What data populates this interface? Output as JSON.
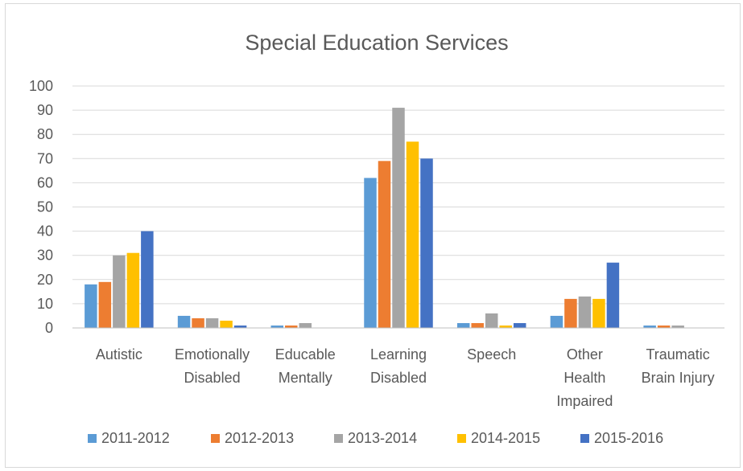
{
  "chart_data": {
    "type": "bar",
    "title": "Special Education Services",
    "xlabel": "",
    "ylabel": "",
    "ylim": [
      0,
      100
    ],
    "yticks": [
      "0",
      "10",
      "20",
      "30",
      "40",
      "50",
      "60",
      "70",
      "80",
      "90",
      "100"
    ],
    "grid": true,
    "legend_position": "bottom",
    "categories": [
      [
        "Autistic"
      ],
      [
        "Emotionally",
        "Disabled"
      ],
      [
        "Educable",
        "Mentally"
      ],
      [
        "Learning",
        "Disabled"
      ],
      [
        "Speech"
      ],
      [
        "Other",
        "Health",
        "Impaired"
      ],
      [
        "Traumatic",
        "Brain Injury"
      ]
    ],
    "series": [
      {
        "name": "2011-2012",
        "color": "#5B9BD5",
        "values": [
          18,
          5,
          1,
          62,
          2,
          5,
          1
        ]
      },
      {
        "name": "2012-2013",
        "color": "#ED7D31",
        "values": [
          19,
          4,
          1,
          69,
          2,
          12,
          1
        ]
      },
      {
        "name": "2013-2014",
        "color": "#A5A5A5",
        "values": [
          30,
          4,
          2,
          91,
          6,
          13,
          1
        ]
      },
      {
        "name": "2014-2015",
        "color": "#FFC000",
        "values": [
          31,
          3,
          0,
          77,
          1,
          12,
          0
        ]
      },
      {
        "name": "2015-2016",
        "color": "#4472C4",
        "values": [
          40,
          1,
          0,
          70,
          2,
          27,
          0
        ]
      }
    ]
  }
}
